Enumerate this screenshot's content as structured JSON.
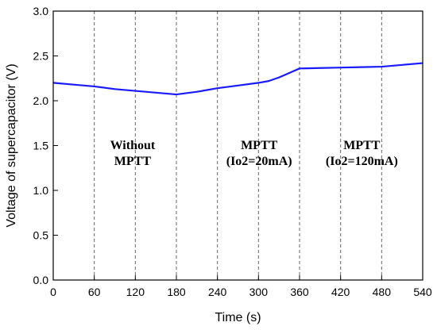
{
  "chart_data": {
    "type": "line",
    "title": "",
    "xlabel": "Time (s)",
    "ylabel": "Voltage of supercapacitor (V)",
    "xlim": [
      0,
      540
    ],
    "ylim": [
      0.0,
      3.0
    ],
    "x_ticks": [
      0,
      60,
      120,
      180,
      240,
      300,
      360,
      420,
      480,
      540
    ],
    "y_ticks": [
      "0.0",
      "0.5",
      "1.0",
      "1.5",
      "2.0",
      "2.5",
      "3.0"
    ],
    "grid": "dashed vertical lines at x ticks 60 to 480",
    "legend": "none",
    "series": [
      {
        "color": "#1a1aff",
        "x": [
          0,
          30,
          60,
          90,
          120,
          150,
          180,
          210,
          240,
          270,
          300,
          315,
          330,
          345,
          360,
          390,
          420,
          450,
          480,
          510,
          540
        ],
        "y": [
          2.2,
          2.18,
          2.16,
          2.13,
          2.11,
          2.09,
          2.07,
          2.1,
          2.14,
          2.17,
          2.2,
          2.22,
          2.26,
          2.31,
          2.36,
          2.365,
          2.37,
          2.375,
          2.38,
          2.4,
          2.42
        ]
      }
    ],
    "annotations": [
      {
        "lines": [
          "Without",
          "MPTT"
        ],
        "x": 116,
        "y": 1.46
      },
      {
        "lines": [
          "MPTT",
          "(Io2=20mA)"
        ],
        "x": 301,
        "y": 1.46
      },
      {
        "lines": [
          "MPTT",
          "(Io2=120mA)"
        ],
        "x": 451,
        "y": 1.46
      }
    ]
  }
}
